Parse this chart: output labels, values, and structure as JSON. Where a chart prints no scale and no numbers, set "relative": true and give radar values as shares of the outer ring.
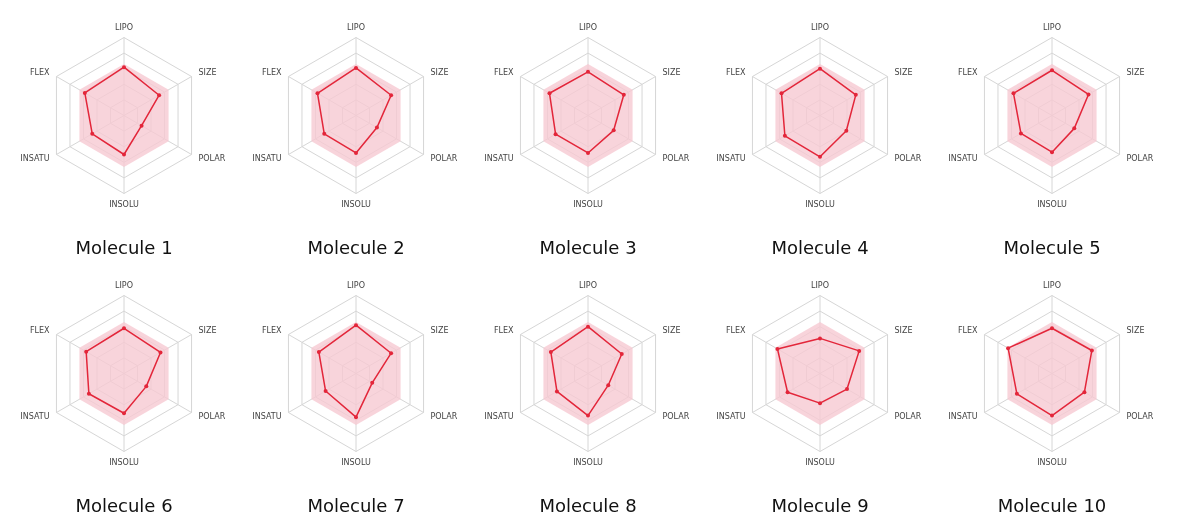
{
  "chart_data": [
    {
      "type": "radar",
      "title": "Molecule 1",
      "categories": [
        "LIPO",
        "SIZE",
        "POLAR",
        "INSOLU",
        "INSATU",
        "FLEX"
      ],
      "relative": true,
      "grid": true,
      "legend": false,
      "marker": "circle",
      "series": [
        {
          "color": "#e3263a",
          "values": [
            0.62,
            0.52,
            0.26,
            0.5,
            0.47,
            0.58
          ]
        }
      ]
    },
    {
      "type": "radar",
      "title": "Molecule 2",
      "categories": [
        "LIPO",
        "SIZE",
        "POLAR",
        "INSOLU",
        "INSATU",
        "FLEX"
      ],
      "relative": true,
      "grid": true,
      "legend": false,
      "marker": "circle",
      "series": [
        {
          "color": "#e3263a",
          "values": [
            0.61,
            0.52,
            0.31,
            0.48,
            0.47,
            0.57
          ]
        }
      ]
    },
    {
      "type": "radar",
      "title": "Molecule 3",
      "categories": [
        "LIPO",
        "SIZE",
        "POLAR",
        "INSOLU",
        "INSATU",
        "FLEX"
      ],
      "relative": true,
      "grid": true,
      "legend": false,
      "marker": "circle",
      "series": [
        {
          "color": "#e3263a",
          "values": [
            0.56,
            0.53,
            0.38,
            0.48,
            0.48,
            0.57
          ]
        }
      ]
    },
    {
      "type": "radar",
      "title": "Molecule 4",
      "categories": [
        "LIPO",
        "SIZE",
        "POLAR",
        "INSOLU",
        "INSATU",
        "FLEX"
      ],
      "relative": true,
      "grid": true,
      "legend": false,
      "marker": "circle",
      "series": [
        {
          "color": "#e3263a",
          "values": [
            0.6,
            0.53,
            0.39,
            0.53,
            0.52,
            0.57
          ]
        }
      ]
    },
    {
      "type": "radar",
      "title": "Molecule 5",
      "categories": [
        "LIPO",
        "SIZE",
        "POLAR",
        "INSOLU",
        "INSATU",
        "FLEX"
      ],
      "relative": true,
      "grid": true,
      "legend": false,
      "marker": "circle",
      "series": [
        {
          "color": "#e3263a",
          "values": [
            0.58,
            0.54,
            0.33,
            0.47,
            0.46,
            0.57
          ]
        }
      ]
    },
    {
      "type": "radar",
      "title": "Molecule 6",
      "categories": [
        "LIPO",
        "SIZE",
        "POLAR",
        "INSOLU",
        "INSATU",
        "FLEX"
      ],
      "relative": true,
      "grid": true,
      "legend": false,
      "marker": "circle",
      "series": [
        {
          "color": "#e3263a",
          "values": [
            0.58,
            0.54,
            0.33,
            0.51,
            0.52,
            0.56
          ]
        }
      ]
    },
    {
      "type": "radar",
      "title": "Molecule 7",
      "categories": [
        "LIPO",
        "SIZE",
        "POLAR",
        "INSOLU",
        "INSATU",
        "FLEX"
      ],
      "relative": true,
      "grid": true,
      "legend": false,
      "marker": "circle",
      "series": [
        {
          "color": "#e3263a",
          "values": [
            0.62,
            0.52,
            0.24,
            0.56,
            0.45,
            0.55
          ]
        }
      ]
    },
    {
      "type": "radar",
      "title": "Molecule 8",
      "categories": [
        "LIPO",
        "SIZE",
        "POLAR",
        "INSOLU",
        "INSATU",
        "FLEX"
      ],
      "relative": true,
      "grid": true,
      "legend": false,
      "marker": "circle",
      "series": [
        {
          "color": "#e3263a",
          "values": [
            0.6,
            0.5,
            0.3,
            0.54,
            0.46,
            0.55
          ]
        }
      ]
    },
    {
      "type": "radar",
      "title": "Molecule 9",
      "categories": [
        "LIPO",
        "SIZE",
        "POLAR",
        "INSOLU",
        "INSATU",
        "FLEX"
      ],
      "relative": true,
      "grid": true,
      "legend": false,
      "marker": "circle",
      "series": [
        {
          "color": "#e3263a",
          "values": [
            0.45,
            0.58,
            0.4,
            0.38,
            0.48,
            0.63
          ]
        }
      ]
    },
    {
      "type": "radar",
      "title": "Molecule 10",
      "categories": [
        "LIPO",
        "SIZE",
        "POLAR",
        "INSOLU",
        "INSATU",
        "FLEX"
      ],
      "relative": true,
      "grid": true,
      "legend": false,
      "marker": "circle",
      "series": [
        {
          "color": "#e3263a",
          "values": [
            0.58,
            0.59,
            0.48,
            0.54,
            0.52,
            0.65
          ]
        }
      ]
    }
  ]
}
